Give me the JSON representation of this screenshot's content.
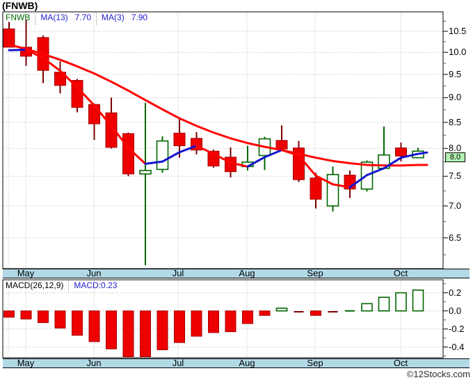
{
  "title": "(FNWB)",
  "watermark": "©12Stocks.com",
  "legend": {
    "symbol": "FNWB",
    "ma13_label": "MA(13)",
    "ma13_value": "7.70",
    "ma3_label": "MA(3)",
    "ma3_value": "7.90"
  },
  "price_badge": "8.0",
  "macd_legend": {
    "label": "MACD(26,12,9)",
    "value": "MACD:0.23"
  },
  "colors": {
    "candle_down_fill": "#ee0000",
    "candle_down_border": "#a40000",
    "candle_down_wick": "#7a0101",
    "candle_up": "#006600",
    "ma13_line": "#ff0202",
    "ma3_rising": "#1414cc",
    "ma3_falling": "#ff0202",
    "grid": "#b9b9b9",
    "strip_bg": "#b2d9e6",
    "badge_bg": "#b2f0b2",
    "legend_symbol": "#006600",
    "legend_ma": "#2222cc",
    "macd_value": "#2222cc"
  },
  "chart_data": [
    {
      "type": "candlestick",
      "symbol": "FNWB",
      "scale": "log",
      "y_axis_ticks": [
        "10.5",
        "10.0",
        "9.5",
        "9.0",
        "8.5",
        "8.0",
        "7.5",
        "7.0",
        "6.5"
      ],
      "x_axis_months": [
        "May",
        "Jun",
        "Jul",
        "Aug",
        "Sep",
        "Oct"
      ],
      "candles_ohlc": [
        [
          10.56,
          10.73,
          10.12,
          10.12
        ],
        [
          10.12,
          10.78,
          9.69,
          9.91
        ],
        [
          10.35,
          10.4,
          9.31,
          9.59
        ],
        [
          9.55,
          9.79,
          9.09,
          9.26
        ],
        [
          9.37,
          9.4,
          8.7,
          8.8
        ],
        [
          8.86,
          8.88,
          8.16,
          8.47
        ],
        [
          8.69,
          9.0,
          8.0,
          8.02
        ],
        [
          8.28,
          8.3,
          7.5,
          7.54
        ],
        [
          7.54,
          8.89,
          6.1,
          7.6
        ],
        [
          7.62,
          8.23,
          7.56,
          8.14
        ],
        [
          8.29,
          8.59,
          7.83,
          8.05
        ],
        [
          8.19,
          8.31,
          7.89,
          7.97
        ],
        [
          7.95,
          7.98,
          7.65,
          7.68
        ],
        [
          7.84,
          8.02,
          7.48,
          7.58
        ],
        [
          7.67,
          8.05,
          7.6,
          7.75
        ],
        [
          7.87,
          8.22,
          7.61,
          8.18
        ],
        [
          8.15,
          8.44,
          7.95,
          7.99
        ],
        [
          8.01,
          8.14,
          7.4,
          7.44
        ],
        [
          7.47,
          7.56,
          6.96,
          7.11
        ],
        [
          7.0,
          7.67,
          6.91,
          7.53
        ],
        [
          7.52,
          7.6,
          7.13,
          7.28
        ],
        [
          7.28,
          7.78,
          7.24,
          7.75
        ],
        [
          7.64,
          8.42,
          7.62,
          7.88
        ],
        [
          8.01,
          8.11,
          7.76,
          7.86
        ],
        [
          7.83,
          8.01,
          7.82,
          7.95
        ]
      ],
      "ma3": [
        10.05,
        10.06,
        9.87,
        9.58,
        9.22,
        8.84,
        8.43,
        8.01,
        7.72,
        7.76,
        7.93,
        8.05,
        7.9,
        7.74,
        7.67,
        7.84,
        7.97,
        7.87,
        7.51,
        7.36,
        7.31,
        7.52,
        7.64,
        7.83,
        7.9
      ],
      "ma13": [
        10.18,
        10.08,
        9.96,
        9.83,
        9.68,
        9.52,
        9.34,
        9.15,
        8.95,
        8.76,
        8.58,
        8.43,
        8.3,
        8.19,
        8.1,
        8.03,
        7.97,
        7.9,
        7.83,
        7.77,
        7.73,
        7.7,
        7.69,
        7.69,
        7.7
      ],
      "last_price": 8.0
    },
    {
      "type": "bar",
      "name": "MACD(26,12,9)",
      "current_value": 0.23,
      "y_axis_ticks": [
        "0.2",
        "0.0",
        "-0.2",
        "-0.4"
      ],
      "values": [
        -0.07,
        -0.09,
        -0.13,
        -0.19,
        -0.27,
        -0.34,
        -0.42,
        -0.51,
        -0.53,
        -0.43,
        -0.35,
        -0.28,
        -0.24,
        -0.23,
        -0.14,
        -0.05,
        0.03,
        -0.01,
        -0.05,
        -0.01,
        0.0,
        0.08,
        0.15,
        0.2,
        0.23
      ]
    }
  ]
}
